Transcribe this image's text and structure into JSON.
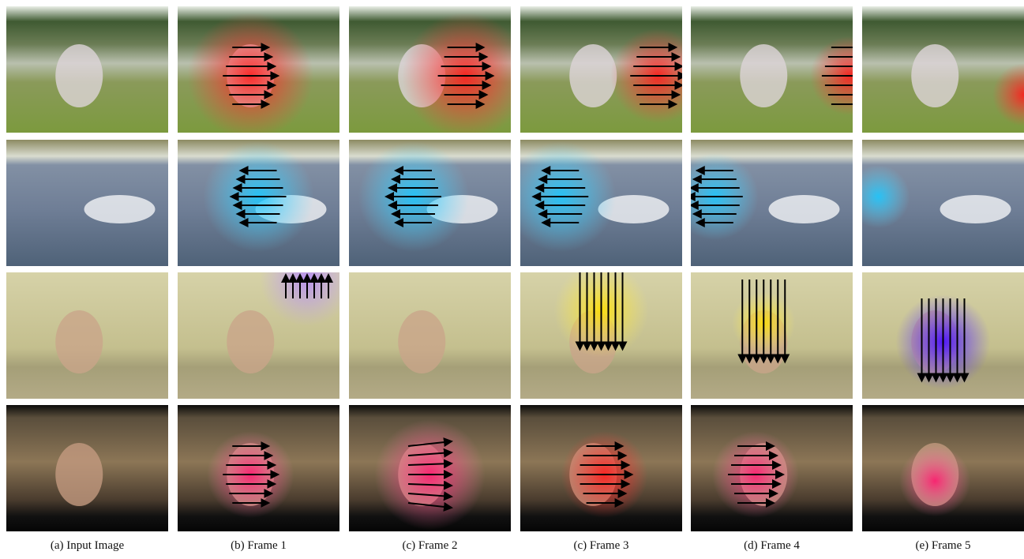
{
  "figure": {
    "captions": [
      "(a) Input Image",
      "(b) Frame 1",
      "(c) Frame 2",
      "(c) Frame 3",
      "(d) Frame 4",
      "(e) Frame 5"
    ]
  }
}
